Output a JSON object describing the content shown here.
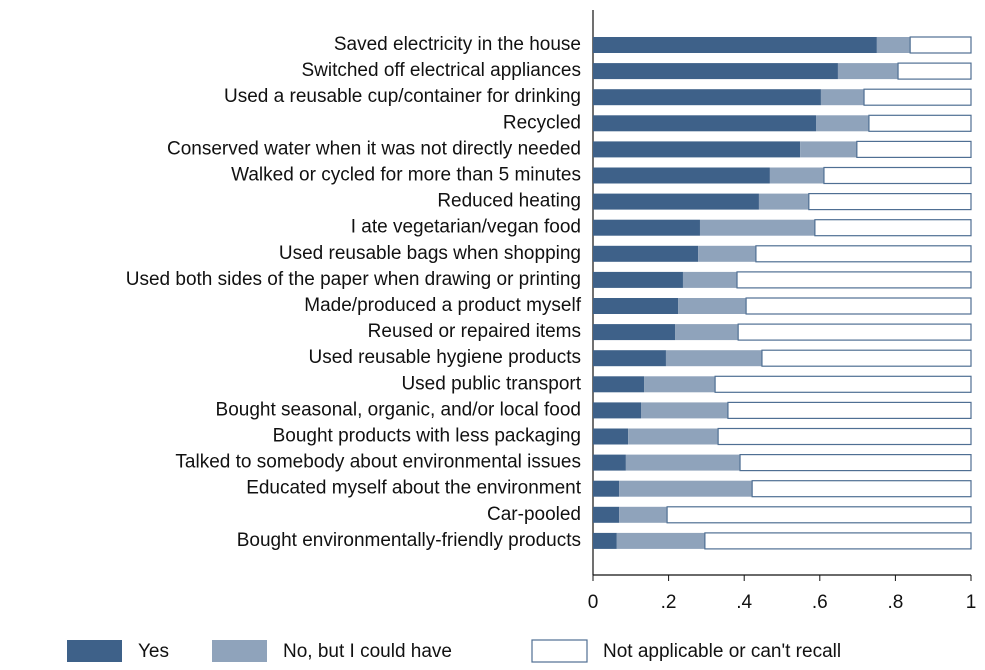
{
  "chart_data": {
    "type": "stacked-barh",
    "categories": [
      "Saved electricity in the house",
      "Switched off electrical appliances",
      "Used a reusable cup/container for drinking",
      "Recycled ",
      "Conserved water when it was not directly needed",
      "Walked or cycled for more than 5 minutes",
      "Reduced heating",
      "I ate vegetarian/vegan food",
      "Used reusable bags when shopping",
      "Used both sides of the paper when drawing or printing",
      "Made/produced a product myself",
      "Reused or repaired items",
      "Used reusable hygiene products",
      "Used public transport",
      "Bought seasonal, organic, and/or local food",
      "Bought products with less packaging",
      "Talked to somebody about environmental issues",
      "Educated myself about the environment ",
      "Car-pooled",
      "Bought environmentally-friendly products"
    ],
    "series": [
      {
        "name": "Yes",
        "color": "#3e6189",
        "values": [
          0.751,
          0.648,
          0.603,
          0.59,
          0.548,
          0.468,
          0.439,
          0.283,
          0.278,
          0.238,
          0.225,
          0.217,
          0.193,
          0.135,
          0.127,
          0.093,
          0.087,
          0.069,
          0.069,
          0.063
        ]
      },
      {
        "name": "No, but I could have",
        "color": "#8fa3bb",
        "values": [
          0.088,
          0.159,
          0.114,
          0.14,
          0.15,
          0.143,
          0.132,
          0.304,
          0.153,
          0.143,
          0.18,
          0.167,
          0.254,
          0.188,
          0.23,
          0.238,
          0.302,
          0.352,
          0.127,
          0.233
        ]
      },
      {
        "name": "Not applicable or can't recall",
        "color": "#ffffff",
        "values": [
          0.161,
          0.193,
          0.283,
          0.27,
          0.302,
          0.389,
          0.429,
          0.413,
          0.569,
          0.619,
          0.595,
          0.616,
          0.553,
          0.677,
          0.643,
          0.669,
          0.611,
          0.579,
          0.804,
          0.704
        ]
      }
    ],
    "xlim": [
      0,
      1
    ],
    "xticks": [
      0,
      {
        "value": 0.2,
        "label": ".2"
      },
      {
        "value": 0.4,
        "label": ".4"
      },
      {
        "value": 0.6,
        "label": ".6"
      },
      {
        "value": 0.8,
        "label": ".8"
      },
      1
    ],
    "legend": "bottom"
  }
}
